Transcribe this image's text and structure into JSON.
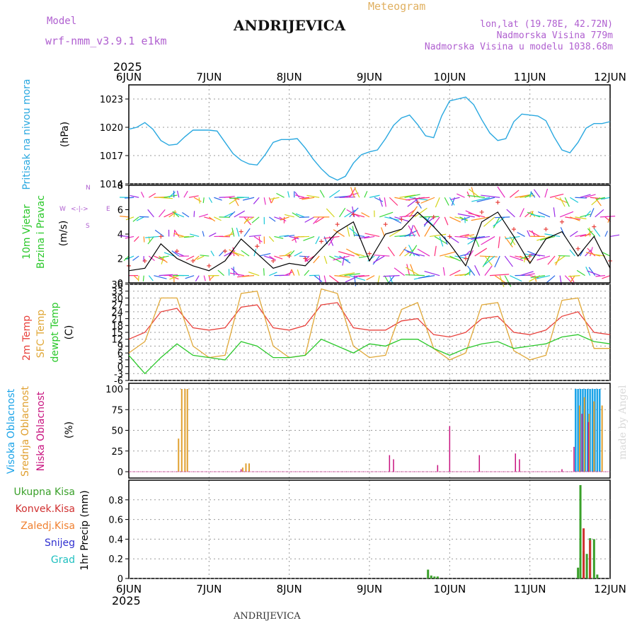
{
  "header": {
    "model_label": "Model",
    "model_name": "wrf-nmm_v3.9.1 e1km",
    "meteogram": "Meteogram",
    "station": "ANDRIJEVICA",
    "lonlat": "lon,lat (19.78E, 42.72N)",
    "altitude": "Nadmorska Visina 779m",
    "model_altitude": "Nadmorska Visina u modelu 1038.68m",
    "year": "2025",
    "footer_station": "ANDRIJEVICA",
    "credit": "made by Angel"
  },
  "colors": {
    "pressure": "#29a8e0",
    "temp2m": "#e8413c",
    "sfc": "#e0a838",
    "dewpt": "#2ac82a",
    "wind_speed": "#000000",
    "gust": "#e8413c",
    "high_cloud": "#1aa3e8",
    "mid_cloud": "#e0a030",
    "low_cloud": "#c8127f",
    "total_rain": "#3aa02a",
    "conv_rain": "#d03030",
    "frz_rain": "#f08030",
    "snow": "#3030d0",
    "graupel": "#20c0c0"
  },
  "axis": {
    "x_labels_top": [
      "6JUN",
      "7JUN",
      "8JUN",
      "9JUN",
      "10JUN",
      "11JUN",
      "12JUN"
    ],
    "x_labels_bottom": [
      "6JUN",
      "7JUN",
      "8JUN",
      "9JUN",
      "10JUN",
      "11JUN",
      "12JUN"
    ]
  },
  "chart_data": [
    {
      "type": "line",
      "id": "pressure",
      "ylabel": "Pritisak na nivou mora",
      "unit": "(hPa)",
      "ylim": [
        1014,
        1024.5
      ],
      "yticks": [
        "1014",
        "1017",
        "1020",
        "1023"
      ],
      "x_days": [
        0,
        0.1,
        0.2,
        0.3,
        0.4,
        0.5,
        0.6,
        0.7,
        0.8,
        0.9,
        1.0,
        1.1,
        1.2,
        1.3,
        1.4,
        1.5,
        1.6,
        1.7,
        1.8,
        1.9,
        2.0,
        2.1,
        2.2,
        2.3,
        2.4,
        2.5,
        2.6,
        2.7,
        2.8,
        2.9,
        3.0,
        3.1,
        3.2,
        3.3,
        3.4,
        3.5,
        3.6,
        3.7,
        3.8,
        3.9,
        4.0,
        4.1,
        4.2,
        4.3,
        4.4,
        4.5,
        4.6,
        4.7,
        4.8,
        4.9,
        5.0,
        5.1,
        5.2,
        5.3,
        5.4,
        5.5,
        5.6,
        5.7,
        5.8,
        5.9,
        6.0
      ],
      "values": [
        1019.8,
        1020,
        1020.5,
        1019.8,
        1018.6,
        1018.1,
        1018.2,
        1019.0,
        1019.7,
        1019.7,
        1019.7,
        1019.6,
        1018.4,
        1017.2,
        1016.5,
        1016.1,
        1016.0,
        1017.1,
        1018.4,
        1018.7,
        1018.7,
        1018.8,
        1017.8,
        1016.6,
        1015.6,
        1014.8,
        1014.4,
        1014.8,
        1016.2,
        1017.1,
        1017.4,
        1017.6,
        1018.8,
        1020.2,
        1021.0,
        1021.3,
        1020.3,
        1019.1,
        1018.9,
        1021.2,
        1022.8,
        1023.0,
        1023.2,
        1022.4,
        1020.8,
        1019.4,
        1018.6,
        1018.8,
        1020.6,
        1021.4,
        1021.3,
        1021.2,
        1020.7,
        1019.0,
        1017.6,
        1017.3,
        1018.4,
        1019.9,
        1020.4,
        1020.4,
        1020.6
      ]
    },
    {
      "type": "line",
      "id": "wind",
      "ylabel": "10m Vjetar Brzina i Pravac",
      "label_line1": "10m Vjetar",
      "label_line2": "Brzina i Pravac",
      "unit": "(m/s)",
      "compass": {
        "n": "N",
        "s": "S",
        "e": "E",
        "w": "W",
        "arrows": "<-|->"
      },
      "ylim": [
        0,
        8
      ],
      "yticks": [
        "0",
        "2",
        "4",
        "6",
        "8"
      ],
      "x_days": [
        0,
        0.2,
        0.4,
        0.6,
        0.8,
        1.0,
        1.2,
        1.4,
        1.6,
        1.8,
        2.0,
        2.2,
        2.4,
        2.6,
        2.8,
        3.0,
        3.2,
        3.4,
        3.6,
        3.8,
        4.0,
        4.2,
        4.4,
        4.6,
        4.8,
        5.0,
        5.2,
        5.4,
        5.6,
        5.8,
        6.0
      ],
      "speed": [
        1.0,
        1.2,
        3.2,
        2.0,
        1.4,
        1.0,
        1.8,
        3.6,
        2.4,
        1.2,
        1.6,
        1.4,
        2.8,
        4.2,
        5.0,
        1.8,
        4.0,
        4.4,
        5.8,
        4.6,
        3.2,
        1.4,
        5.0,
        5.8,
        3.8,
        1.6,
        3.6,
        4.2,
        2.2,
        3.8,
        1.2
      ],
      "gust": [
        1.4,
        1.8,
        3.8,
        2.6,
        1.8,
        1.4,
        2.6,
        4.2,
        3.0,
        1.8,
        2.2,
        2.0,
        3.4,
        4.8,
        5.6,
        2.4,
        4.8,
        5.2,
        6.6,
        5.4,
        3.8,
        2.0,
        5.8,
        6.6,
        4.4,
        2.2,
        4.4,
        5.0,
        2.8,
        4.6,
        1.8
      ]
    },
    {
      "type": "line",
      "id": "temperature",
      "ylabel_2m": "2m Temp",
      "ylabel_sfc": "SFC Temp",
      "ylabel_dew": "dewpt Temp",
      "unit": "(C)",
      "ylim": [
        -6,
        36
      ],
      "yticks": [
        "-6",
        "-3",
        "0",
        "3",
        "6",
        "9",
        "12",
        "15",
        "18",
        "21",
        "24",
        "27",
        "30",
        "33",
        "36"
      ],
      "x_days": [
        0,
        0.2,
        0.4,
        0.6,
        0.8,
        1.0,
        1.2,
        1.4,
        1.6,
        1.8,
        2.0,
        2.2,
        2.4,
        2.6,
        2.8,
        3.0,
        3.2,
        3.4,
        3.6,
        3.8,
        4.0,
        4.2,
        4.4,
        4.6,
        4.8,
        5.0,
        5.2,
        5.4,
        5.6,
        5.8,
        6.0
      ],
      "t2m": [
        12,
        15,
        24,
        25.5,
        17,
        16,
        17,
        26,
        27,
        17,
        16,
        18,
        27,
        28,
        17,
        16,
        16,
        20,
        21,
        14,
        13,
        15,
        21,
        22,
        15,
        14,
        16,
        22,
        24,
        15,
        14
      ],
      "sfc": [
        6,
        11,
        30,
        30,
        9,
        4,
        5,
        32,
        33,
        9,
        4,
        5,
        34,
        32,
        9,
        4,
        5,
        25,
        28,
        8,
        3,
        6,
        27,
        28,
        7,
        3,
        5,
        29,
        30,
        8,
        8
      ],
      "dewpt": [
        5,
        -3,
        4,
        10,
        5,
        4,
        3,
        11,
        9,
        4,
        4,
        5,
        12,
        9,
        6,
        10,
        9,
        12,
        12,
        8,
        5,
        8,
        10,
        11,
        8,
        9,
        10,
        13,
        14,
        11,
        10
      ]
    },
    {
      "type": "bar",
      "id": "cloud",
      "ylabel_high": "Visoka Oblacnost",
      "ylabel_mid": "Srednja Oblacnost",
      "ylabel_low": "Niska Oblacnost",
      "unit": "(%)",
      "ylim": [
        0,
        100
      ],
      "yticks": [
        "0",
        "25",
        "50",
        "75",
        "100"
      ],
      "high": [
        [
          5.57,
          100
        ],
        [
          5.6,
          100
        ],
        [
          5.63,
          100
        ],
        [
          5.66,
          100
        ],
        [
          5.69,
          100
        ],
        [
          5.72,
          100
        ],
        [
          5.75,
          100
        ],
        [
          5.78,
          100
        ],
        [
          5.81,
          100
        ],
        [
          5.84,
          100
        ],
        [
          5.87,
          100
        ]
      ],
      "mid": [
        [
          0.62,
          40
        ],
        [
          0.66,
          100
        ],
        [
          0.7,
          100
        ],
        [
          0.73,
          100
        ],
        [
          1.42,
          5
        ],
        [
          1.46,
          10
        ],
        [
          1.5,
          10
        ],
        [
          5.62,
          80
        ],
        [
          5.68,
          90
        ],
        [
          5.74,
          70
        ],
        [
          5.8,
          85
        ],
        [
          5.9,
          80
        ]
      ],
      "low": [
        [
          1.4,
          3
        ],
        [
          3.25,
          20
        ],
        [
          3.3,
          15
        ],
        [
          3.85,
          8
        ],
        [
          4.0,
          55
        ],
        [
          4.37,
          20
        ],
        [
          4.82,
          22
        ],
        [
          4.87,
          15
        ],
        [
          5.4,
          3
        ],
        [
          5.55,
          30
        ],
        [
          5.65,
          70
        ],
        [
          5.73,
          60
        ]
      ]
    },
    {
      "type": "bar",
      "id": "precip",
      "ylabel": "1hr Precip (mm)",
      "legend": [
        "Ukupna Kisa",
        "Konvek.Kisa",
        "Zaledj.Kisa",
        "Snijeg",
        "Grad"
      ],
      "ylim": [
        0,
        1.0
      ],
      "yticks": [
        "0",
        "0.2",
        "0.4",
        "0.6",
        "0.8"
      ],
      "total": [
        [
          3.73,
          0.09
        ],
        [
          3.77,
          0.03
        ],
        [
          3.81,
          0.02
        ],
        [
          3.85,
          0.02
        ],
        [
          5.6,
          0.11
        ],
        [
          5.63,
          0.95
        ],
        [
          5.67,
          0.28
        ],
        [
          5.71,
          0.25
        ],
        [
          5.75,
          0.41
        ],
        [
          5.8,
          0.4
        ],
        [
          5.84,
          0.04
        ]
      ],
      "convective": [
        [
          5.67,
          0.51
        ],
        [
          5.75,
          0.39
        ]
      ]
    }
  ]
}
